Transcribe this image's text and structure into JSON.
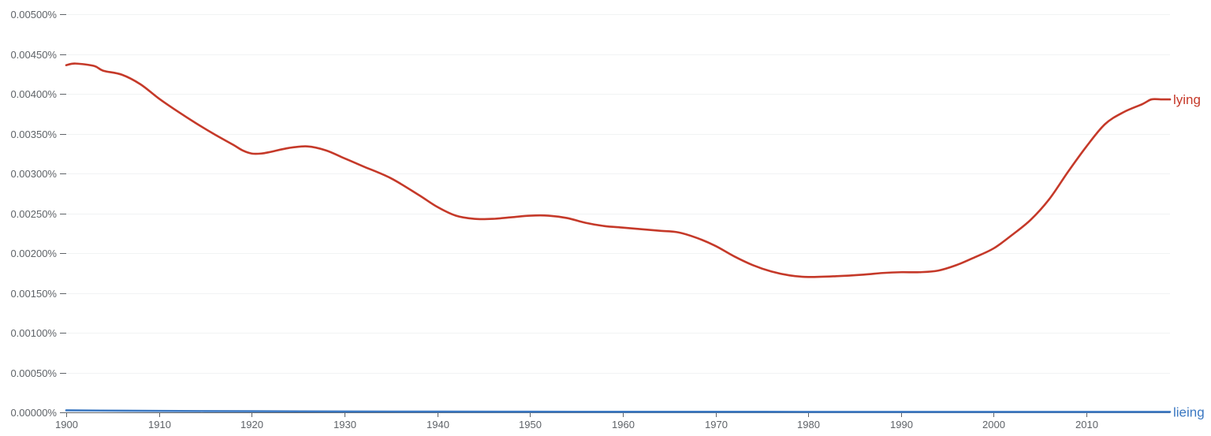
{
  "chart_data": {
    "type": "line",
    "title": "",
    "xlabel": "",
    "ylabel": "",
    "xlim": [
      1900,
      2019
    ],
    "ylim": [
      0,
      0.005
    ],
    "grid": true,
    "x_ticks": [
      1900,
      1910,
      1920,
      1930,
      1940,
      1950,
      1960,
      1970,
      1980,
      1990,
      2000,
      2010
    ],
    "x_tick_labels": [
      "1900",
      "1910",
      "1920",
      "1930",
      "1940",
      "1950",
      "1960",
      "1970",
      "1980",
      "1990",
      "2000",
      "2010"
    ],
    "y_ticks": [
      0,
      0.0005,
      0.001,
      0.0015,
      0.002,
      0.0025,
      0.003,
      0.0035,
      0.004,
      0.0045,
      0.005
    ],
    "y_tick_labels": [
      "0.00000%",
      "0.00050%",
      "0.00100%",
      "0.00150%",
      "0.00200%",
      "0.00250%",
      "0.00300%",
      "0.00350%",
      "0.00400%",
      "0.00450%",
      "0.00500%"
    ],
    "series": [
      {
        "name": "lying",
        "color": "#c53929",
        "x": [
          1900,
          1901,
          1903,
          1904,
          1906,
          1908,
          1910,
          1912,
          1914,
          1916,
          1918,
          1919,
          1920,
          1921,
          1922,
          1924,
          1926,
          1928,
          1930,
          1932,
          1935,
          1938,
          1940,
          1942,
          1944,
          1946,
          1948,
          1950,
          1952,
          1954,
          1956,
          1958,
          1960,
          1962,
          1964,
          1966,
          1968,
          1970,
          1972,
          1974,
          1976,
          1978,
          1980,
          1983,
          1986,
          1988,
          1990,
          1992,
          1994,
          1996,
          1998,
          2000,
          2002,
          2004,
          2006,
          2008,
          2010,
          2012,
          2014,
          2016,
          2017,
          2018,
          2019
        ],
        "y": [
          0.00436,
          0.00438,
          0.00435,
          0.00429,
          0.00424,
          0.00412,
          0.00394,
          0.00378,
          0.00363,
          0.00349,
          0.00336,
          0.00329,
          0.00325,
          0.00325,
          0.00327,
          0.00332,
          0.00334,
          0.00329,
          0.00319,
          0.00309,
          0.00294,
          0.00273,
          0.00258,
          0.00247,
          0.00243,
          0.00243,
          0.00245,
          0.00247,
          0.00247,
          0.00244,
          0.00238,
          0.00234,
          0.00232,
          0.0023,
          0.00228,
          0.00226,
          0.00219,
          0.00209,
          0.00196,
          0.00185,
          0.00177,
          0.00172,
          0.0017,
          0.00171,
          0.00173,
          0.00175,
          0.00176,
          0.00176,
          0.00178,
          0.00185,
          0.00195,
          0.00206,
          0.00223,
          0.00242,
          0.00268,
          0.00302,
          0.00334,
          0.00362,
          0.00377,
          0.00387,
          0.00393,
          0.00393,
          0.00393
        ]
      },
      {
        "name": "lieing",
        "color": "#3b78c2",
        "x": [
          1900,
          1910,
          1920,
          1930,
          1940,
          1950,
          1960,
          1970,
          1980,
          1990,
          2000,
          2010,
          2019
        ],
        "y": [
          2.5e-05,
          1.8e-05,
          1.4e-05,
          1.1e-05,
          9e-06,
          8e-06,
          7e-06,
          7e-06,
          6e-06,
          6e-06,
          6e-06,
          6e-06,
          6e-06
        ]
      }
    ]
  }
}
